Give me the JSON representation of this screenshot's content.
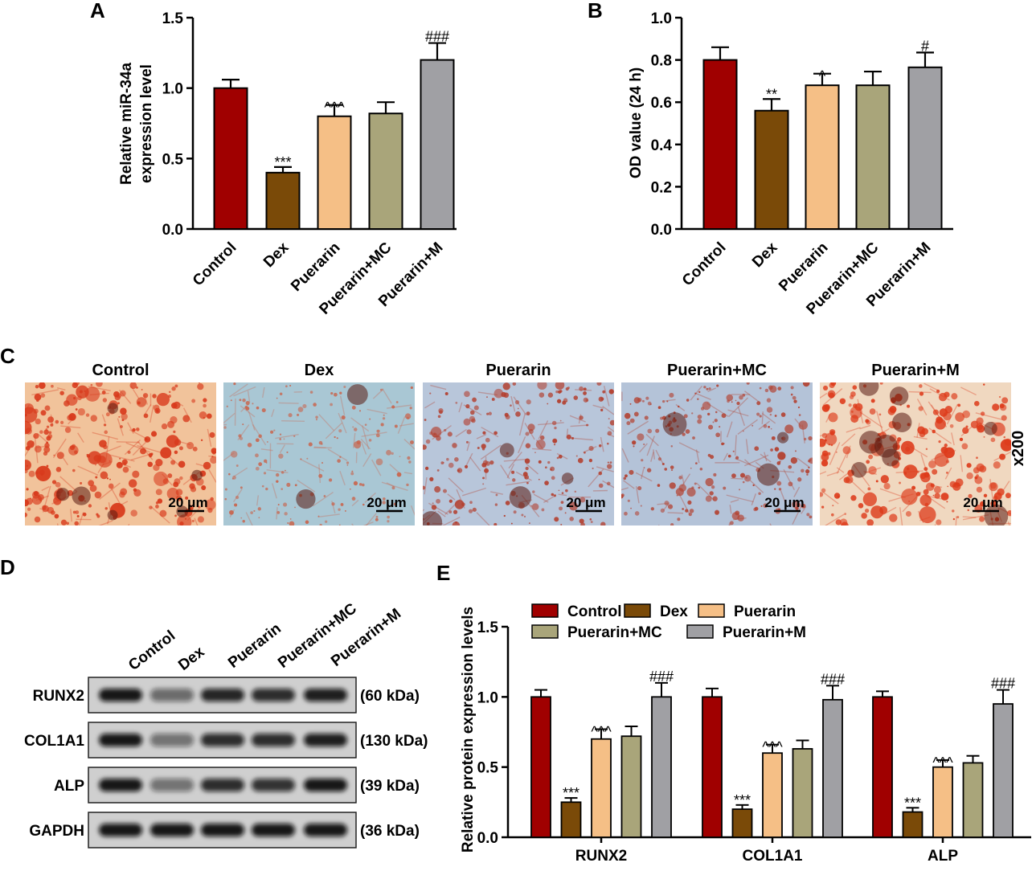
{
  "panels": {
    "a": {
      "letter": "A"
    },
    "b": {
      "letter": "B"
    },
    "c": {
      "letter": "C"
    },
    "d": {
      "letter": "D"
    },
    "e": {
      "letter": "E"
    }
  },
  "colors": {
    "Control": "#a00000",
    "Dex": "#7a4a08",
    "Puerarin": "#f5bf86",
    "Puerarin+MC": "#a9a57a",
    "Puerarin+M": "#a0a0a4"
  },
  "micrographs": {
    "titles": [
      "Control",
      "Dex",
      "Puerarin",
      "Puerarin+MC",
      "Puerarin+M"
    ],
    "scale_bar": "20 μm",
    "magnification": "x200"
  },
  "western_blot": {
    "lanes": [
      "Control",
      "Dex",
      "Puerarin",
      "Puerarin+MC",
      "Puerarin+M"
    ],
    "rows": [
      {
        "protein": "RUNX2",
        "size": "(60 kDa)",
        "intensity": [
          1.0,
          0.4,
          0.9,
          0.85,
          0.95
        ]
      },
      {
        "protein": "COL1A1",
        "size": "(130 kDa)",
        "intensity": [
          1.0,
          0.35,
          0.85,
          0.85,
          0.95
        ]
      },
      {
        "protein": "ALP",
        "size": "(39 kDa)",
        "intensity": [
          1.0,
          0.35,
          0.85,
          0.8,
          1.0
        ]
      },
      {
        "protein": "GAPDH",
        "size": "(36 kDa)",
        "intensity": [
          1.0,
          1.0,
          1.0,
          1.0,
          1.0
        ]
      }
    ]
  },
  "chart_data": [
    {
      "panel": "A",
      "type": "bar",
      "categories": [
        "Control",
        "Dex",
        "Puerarin",
        "Puerarin+MC",
        "Puerarin+M"
      ],
      "values": [
        1.0,
        0.4,
        0.8,
        0.82,
        1.2
      ],
      "errors": [
        0.06,
        0.04,
        0.08,
        0.08,
        0.12
      ],
      "significance": [
        "",
        "***",
        "^^^",
        "",
        "###"
      ],
      "ylabel_line1": "Relative miR-34a",
      "ylabel_line2": "expression level",
      "ylim": [
        0,
        1.5
      ],
      "yticks": [
        "0.0",
        "0.5",
        "1.0",
        "1.5"
      ]
    },
    {
      "panel": "B",
      "type": "bar",
      "categories": [
        "Control",
        "Dex",
        "Puerarin",
        "Puerarin+MC",
        "Puerarin+M"
      ],
      "values": [
        0.8,
        0.56,
        0.68,
        0.68,
        0.765
      ],
      "errors": [
        0.06,
        0.055,
        0.055,
        0.065,
        0.07
      ],
      "significance": [
        "",
        "**",
        "^",
        "",
        "#"
      ],
      "ylabel": "OD value (24 h)",
      "ylim": [
        0,
        1.0
      ],
      "yticks": [
        "0.0",
        "0.2",
        "0.4",
        "0.6",
        "0.8",
        "1.0"
      ]
    },
    {
      "panel": "E",
      "type": "bar",
      "categories": [
        "RUNX2",
        "COL1A1",
        "ALP"
      ],
      "series": [
        {
          "name": "Control",
          "values": [
            1.0,
            1.0,
            1.0
          ],
          "errors": [
            0.05,
            0.06,
            0.04
          ],
          "significance": [
            "",
            "",
            ""
          ]
        },
        {
          "name": "Dex",
          "values": [
            0.25,
            0.2,
            0.18
          ],
          "errors": [
            0.03,
            0.03,
            0.03
          ],
          "significance": [
            "***",
            "***",
            "***"
          ]
        },
        {
          "name": "Puerarin",
          "values": [
            0.7,
            0.6,
            0.5
          ],
          "errors": [
            0.07,
            0.06,
            0.05
          ],
          "significance": [
            "^^^",
            "^^^",
            "^^^"
          ]
        },
        {
          "name": "Puerarin+MC",
          "values": [
            0.72,
            0.63,
            0.53
          ],
          "errors": [
            0.07,
            0.06,
            0.05
          ],
          "significance": [
            "",
            "",
            ""
          ]
        },
        {
          "name": "Puerarin+M",
          "values": [
            1.0,
            0.98,
            0.95
          ],
          "errors": [
            0.1,
            0.1,
            0.1
          ],
          "significance": [
            "###",
            "###",
            "###"
          ]
        }
      ],
      "ylabel": "Relative protein expression levels",
      "ylim": [
        0,
        1.5
      ],
      "yticks": [
        "0.0",
        "0.5",
        "1.0",
        "1.5"
      ],
      "legend_placement": "top",
      "legend_row1": [
        "Control",
        "Dex",
        "Puerarin"
      ],
      "legend_row2": [
        "Puerarin+MC",
        "Puerarin+M"
      ]
    }
  ]
}
